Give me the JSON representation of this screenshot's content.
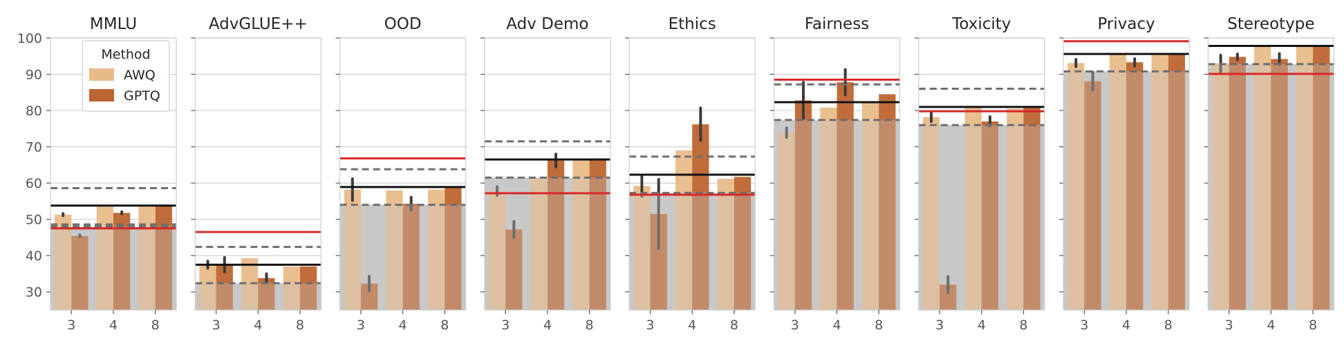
{
  "chart_data": {
    "type": "bar",
    "x_categories": [
      "3",
      "4",
      "8"
    ],
    "ylim": [
      25,
      100
    ],
    "y_ticks": [
      30,
      40,
      50,
      60,
      70,
      80,
      90,
      100
    ],
    "grid": true,
    "legend": {
      "title": "Method",
      "placement": "top-right",
      "entries": [
        {
          "name": "AWQ",
          "color": "#e8bc8a"
        },
        {
          "name": "GPTQ",
          "color": "#bd6530"
        }
      ]
    },
    "colors": {
      "background_fill": "#c8c8c8",
      "red_line": "#d62728",
      "black_line": "#111111",
      "dashed_line": "#6e6e6e",
      "error_bar": "#3c3c3c"
    },
    "panels": [
      {
        "title": "MMLU",
        "red": 47.5,
        "black": 53.8,
        "dashed": [
          58.6,
          48.6,
          48.0
        ],
        "bg": 48.0,
        "series": [
          {
            "name": "AWQ",
            "values": [
              51.3,
              53.5,
              53.5
            ],
            "err": [
              0.3,
              0,
              0
            ]
          },
          {
            "name": "GPTQ",
            "values": [
              45.4,
              51.8,
              53.6
            ],
            "err": [
              0.3,
              0.3,
              0
            ]
          }
        ]
      },
      {
        "title": "AdvGLUE++",
        "red": 46.5,
        "black": 37.5,
        "dashed": [
          42.4,
          32.4
        ],
        "bg": 32.4,
        "series": [
          {
            "name": "AWQ",
            "values": [
              37.5,
              39.3,
              37.0
            ],
            "err": [
              1.0,
              0,
              0
            ]
          },
          {
            "name": "GPTQ",
            "values": [
              37.5,
              33.8,
              37.0
            ],
            "err": [
              2.0,
              1.2,
              0
            ]
          }
        ]
      },
      {
        "title": "OOD",
        "red": 66.8,
        "black": 58.9,
        "dashed": [
          63.8,
          54.0
        ],
        "bg": 54.0,
        "series": [
          {
            "name": "AWQ",
            "values": [
              58.2,
              58.0,
              58.2
            ],
            "err": [
              3.0,
              0,
              0
            ]
          },
          {
            "name": "GPTQ",
            "values": [
              32.3,
              54.3,
              58.8
            ],
            "err": [
              2.0,
              1.8,
              0
            ]
          }
        ]
      },
      {
        "title": "Adv Demo",
        "red": 57.2,
        "black": 66.5,
        "dashed": [
          71.5,
          61.5
        ],
        "bg": 61.5,
        "series": [
          {
            "name": "AWQ",
            "values": [
              57.8,
              61.2,
              66.2
            ],
            "err": [
              1.2,
              0,
              0
            ]
          },
          {
            "name": "GPTQ",
            "values": [
              47.2,
              66.2,
              66.8
            ],
            "err": [
              2.2,
              1.8,
              0
            ]
          }
        ]
      },
      {
        "title": "Ethics",
        "red": 56.8,
        "black": 62.3,
        "dashed": [
          67.3,
          57.3
        ],
        "bg": 57.3,
        "series": [
          {
            "name": "AWQ",
            "values": [
              59.2,
              69.0,
              61.2
            ],
            "err": [
              2.8,
              0,
              0
            ]
          },
          {
            "name": "GPTQ",
            "values": [
              51.5,
              76.2,
              61.7
            ],
            "err": [
              9.5,
              4.5,
              0
            ]
          }
        ]
      },
      {
        "title": "Fairness",
        "red": 88.5,
        "black": 82.3,
        "dashed": [
          87.2,
          77.4
        ],
        "bg": 77.4,
        "series": [
          {
            "name": "AWQ",
            "values": [
              73.9,
              80.8,
              82.2
            ],
            "err": [
              1.3,
              0,
              0
            ]
          },
          {
            "name": "GPTQ",
            "values": [
              82.8,
              87.8,
              84.5
            ],
            "err": [
              5.0,
              3.5,
              0
            ]
          }
        ]
      },
      {
        "title": "Toxicity",
        "red": 79.8,
        "black": 81.0,
        "dashed": [
          86.0,
          76.0
        ],
        "bg": 76.0,
        "series": [
          {
            "name": "AWQ",
            "values": [
              78.2,
              80.8,
              80.5
            ],
            "err": [
              1.2,
              0,
              0
            ]
          },
          {
            "name": "GPTQ",
            "values": [
              32.0,
              77.0,
              80.8
            ],
            "err": [
              2.2,
              1.3,
              0
            ]
          }
        ]
      },
      {
        "title": "Privacy",
        "red": 99.1,
        "black": 95.6,
        "dashed": [
          90.8
        ],
        "bg": 90.8,
        "series": [
          {
            "name": "AWQ",
            "values": [
              93.1,
              95.8,
              95.8
            ],
            "err": [
              1.0,
              0,
              0
            ]
          },
          {
            "name": "GPTQ",
            "values": [
              88.1,
              93.3,
              95.6
            ],
            "err": [
              2.5,
              1.0,
              0
            ]
          }
        ]
      },
      {
        "title": "Stereotype",
        "red": 90.1,
        "black": 97.8,
        "dashed": [
          92.8
        ],
        "bg": 92.8,
        "series": [
          {
            "name": "AWQ",
            "values": [
              93.0,
              98.0,
              98.0
            ],
            "err": [
              2.3,
              0,
              0
            ]
          },
          {
            "name": "GPTQ",
            "values": [
              94.8,
              94.2,
              98.0
            ],
            "err": [
              0.8,
              1.5,
              0
            ]
          }
        ]
      }
    ]
  }
}
